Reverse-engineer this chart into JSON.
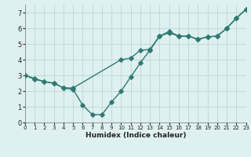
{
  "line1_x": [
    0,
    1,
    2,
    3,
    4,
    5,
    10,
    11,
    12,
    13,
    14,
    15,
    16,
    17,
    18,
    19,
    20,
    21,
    22,
    23
  ],
  "line1_y": [
    3.0,
    2.8,
    2.6,
    2.5,
    2.2,
    2.2,
    4.0,
    4.1,
    4.6,
    4.65,
    5.5,
    5.7,
    5.5,
    5.5,
    5.3,
    5.45,
    5.5,
    6.0,
    6.65,
    7.2
  ],
  "line2_x": [
    0,
    1,
    2,
    3,
    4,
    5,
    6,
    7,
    8,
    9,
    10,
    11,
    12,
    13,
    14,
    15,
    16,
    17,
    18,
    19,
    20,
    21,
    22,
    23
  ],
  "line2_y": [
    3.0,
    2.75,
    2.6,
    2.5,
    2.2,
    2.1,
    1.1,
    0.5,
    0.5,
    1.3,
    2.0,
    2.9,
    3.8,
    4.6,
    5.5,
    5.8,
    5.5,
    5.5,
    5.3,
    5.45,
    5.5,
    6.0,
    6.65,
    7.2
  ],
  "color": "#2d7a72",
  "bg_color": "#dff0f0",
  "grid_color": "#b8d8d8",
  "xlabel": "Humidex (Indice chaleur)",
  "xlim": [
    0,
    23
  ],
  "ylim": [
    0,
    7.5
  ],
  "xticks": [
    0,
    1,
    2,
    3,
    4,
    5,
    6,
    7,
    8,
    9,
    10,
    11,
    12,
    13,
    14,
    15,
    16,
    17,
    18,
    19,
    20,
    21,
    22,
    23
  ],
  "yticks": [
    0,
    1,
    2,
    3,
    4,
    5,
    6,
    7
  ],
  "marker": "D",
  "markersize": 2.8,
  "linewidth": 1.0,
  "xlabel_fontsize": 6.5,
  "xtick_fontsize": 5.0,
  "ytick_fontsize": 6.0
}
